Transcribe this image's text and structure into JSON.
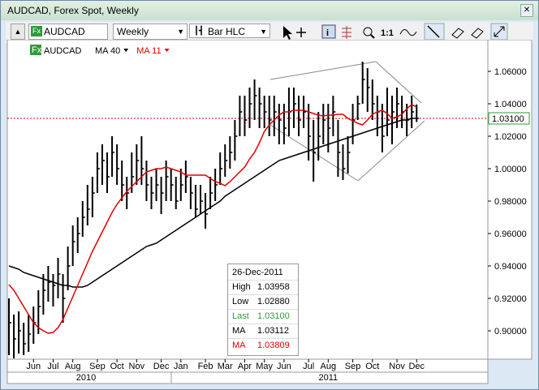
{
  "window": {
    "title": "AUDCAD, Forex Spot, Weekly"
  },
  "toolbar": {
    "symbol": "AUDCAD",
    "period": "Weekly",
    "chart_style": "Bar HLC",
    "zoom_label": "1:1",
    "fx_icon": "Fx"
  },
  "legend": {
    "symbol": "AUDCAD"
  },
  "info_box": {
    "date": "26-Dec-2011",
    "rows": [
      [
        "High",
        "1.03958"
      ],
      [
        "Low",
        "1.02880"
      ],
      [
        "Last",
        "1.03100"
      ],
      [
        "MA",
        "1.03112"
      ],
      [
        "MA",
        "1.03809"
      ]
    ]
  },
  "chart_data": {
    "type": "ohlc",
    "high": [
      0.92,
      0.91,
      0.912,
      0.905,
      0.91,
      0.915,
      0.925,
      0.935,
      0.94,
      0.935,
      0.945,
      0.935,
      0.952,
      0.965,
      0.97,
      0.98,
      0.99,
      0.995,
      1.01,
      1.015,
      1.01,
      1.02,
      1.015,
      1.005,
      0.995,
      1.01,
      1.015,
      1.02,
      1.005,
      0.995,
      1.0,
      0.995,
      1.005,
      1.0,
      0.995,
      1.0,
      1.005,
      0.995,
      0.99,
      0.99,
      0.985,
      0.995,
      1.0,
      1.01,
      1.015,
      1.02,
      1.03,
      1.045,
      1.045,
      1.05,
      1.055,
      1.05,
      1.045,
      1.045,
      1.045,
      1.04,
      1.04,
      1.05,
      1.05,
      1.045,
      1.045,
      1.04,
      1.03,
      1.035,
      1.04,
      1.04,
      1.045,
      1.03,
      1.015,
      1.02,
      1.04,
      1.045,
      1.066,
      1.062,
      1.055,
      1.045,
      1.04,
      1.05,
      1.045,
      1.05,
      1.045,
      1.04,
      1.045,
      1.03958
    ],
    "low": [
      0.885,
      0.883,
      0.886,
      0.885,
      0.887,
      0.892,
      0.898,
      0.91,
      0.918,
      0.915,
      0.92,
      0.905,
      0.925,
      0.94,
      0.948,
      0.958,
      0.965,
      0.97,
      0.985,
      0.99,
      0.985,
      0.995,
      0.99,
      0.98,
      0.975,
      0.985,
      0.99,
      0.99,
      0.98,
      0.975,
      0.98,
      0.972,
      0.98,
      0.98,
      0.975,
      0.98,
      0.985,
      0.975,
      0.97,
      0.972,
      0.963,
      0.975,
      0.98,
      0.99,
      0.995,
      1.0,
      1.005,
      1.02,
      1.02,
      1.025,
      1.03,
      1.025,
      1.025,
      1.02,
      1.02,
      1.015,
      1.015,
      1.02,
      1.025,
      1.02,
      1.025,
      1.005,
      0.992,
      1.005,
      1.015,
      1.01,
      1.02,
      0.995,
      0.993,
      0.997,
      1.015,
      1.03,
      1.04,
      1.035,
      1.03,
      1.02,
      1.01,
      1.02,
      1.015,
      1.025,
      1.025,
      1.02,
      1.025,
      1.0288
    ],
    "close": [
      0.905,
      0.895,
      0.9,
      0.892,
      0.898,
      0.905,
      0.915,
      0.925,
      0.93,
      0.928,
      0.935,
      0.92,
      0.94,
      0.955,
      0.96,
      0.97,
      0.975,
      0.985,
      1.0,
      1.005,
      0.995,
      1.01,
      1.0,
      0.99,
      0.985,
      0.995,
      1.005,
      1.0,
      0.99,
      0.985,
      0.99,
      0.985,
      0.995,
      0.99,
      0.98,
      0.99,
      0.995,
      0.985,
      0.975,
      0.98,
      0.972,
      0.985,
      0.99,
      1.0,
      1.005,
      1.01,
      1.02,
      1.035,
      1.03,
      1.04,
      1.045,
      1.04,
      1.035,
      1.03,
      1.035,
      1.03,
      1.025,
      1.035,
      1.04,
      1.03,
      1.035,
      1.02,
      1.01,
      1.02,
      1.03,
      1.025,
      1.035,
      1.01,
      1.0,
      1.01,
      1.03,
      1.04,
      1.055,
      1.05,
      1.04,
      1.035,
      1.02,
      1.03,
      1.035,
      1.04,
      1.035,
      1.03,
      1.035,
      1.031
    ],
    "series": [
      {
        "name": "MA 40",
        "color": "#000000",
        "values": [
          0.94,
          0.939,
          0.938,
          0.936,
          0.935,
          0.934,
          0.933,
          0.932,
          0.931,
          0.93,
          0.929,
          0.928,
          0.928,
          0.927,
          0.927,
          0.927,
          0.928,
          0.93,
          0.932,
          0.934,
          0.936,
          0.938,
          0.94,
          0.942,
          0.944,
          0.946,
          0.948,
          0.95,
          0.952,
          0.953,
          0.954,
          0.956,
          0.958,
          0.96,
          0.962,
          0.964,
          0.966,
          0.968,
          0.97,
          0.972,
          0.974,
          0.976,
          0.978,
          0.98,
          0.983,
          0.985,
          0.987,
          0.989,
          0.991,
          0.993,
          0.995,
          0.997,
          0.999,
          1.001,
          1.003,
          1.005,
          1.006,
          1.007,
          1.008,
          1.009,
          1.01,
          1.011,
          1.012,
          1.013,
          1.014,
          1.015,
          1.016,
          1.017,
          1.018,
          1.019,
          1.02,
          1.021,
          1.022,
          1.023,
          1.024,
          1.025,
          1.026,
          1.027,
          1.028,
          1.029,
          1.03,
          1.03,
          1.031,
          1.03112
        ]
      },
      {
        "name": "MA 11",
        "color": "#e00000",
        "values": [
          0.9285,
          0.925,
          0.92,
          0.915,
          0.91,
          0.905,
          0.902,
          0.9,
          0.8985,
          0.899,
          0.902,
          0.907,
          0.914,
          0.921,
          0.928,
          0.935,
          0.942,
          0.949,
          0.955,
          0.961,
          0.967,
          0.973,
          0.978,
          0.982,
          0.986,
          0.989,
          0.992,
          0.995,
          0.998,
          0.999,
          1.0,
          1.0,
          1.001,
          1.0,
          0.999,
          0.998,
          0.996,
          0.996,
          0.996,
          0.996,
          0.996,
          0.994,
          0.992,
          0.991,
          0.9895,
          0.992,
          0.995,
          0.998,
          1.001,
          1.006,
          1.01,
          1.016,
          1.023,
          1.027,
          1.03,
          1.033,
          1.035,
          1.035,
          1.036,
          1.036,
          1.036,
          1.035,
          1.034,
          1.033,
          1.0325,
          1.033,
          1.033,
          1.0335,
          1.0335,
          1.031,
          1.0295,
          1.028,
          1.027,
          1.03,
          1.0335,
          1.035,
          1.036,
          1.034,
          1.031,
          1.032,
          1.0335,
          1.037,
          1.0395,
          1.03809
        ]
      }
    ],
    "ylim": [
      0.8825,
      1.0795
    ],
    "yticks": [
      {
        "value": 0.9,
        "label": "0.90000"
      },
      {
        "value": 0.92,
        "label": "0.92000"
      },
      {
        "value": 0.94,
        "label": "0.94000"
      },
      {
        "value": 0.96,
        "label": "0.96000"
      },
      {
        "value": 0.98,
        "label": "0.98000"
      },
      {
        "value": 1.0,
        "label": "1.00000"
      },
      {
        "value": 1.02,
        "label": "1.02000"
      },
      {
        "value": 1.04,
        "label": "1.04000"
      },
      {
        "value": 1.06,
        "label": "1.06000"
      }
    ],
    "xlim": [
      -0.33,
      97.5
    ],
    "xticks": [
      {
        "value": 5,
        "label": "Jun"
      },
      {
        "value": 9,
        "label": "Jul"
      },
      {
        "value": 13,
        "label": "Aug"
      },
      {
        "value": 18,
        "label": "Sep"
      },
      {
        "value": 22,
        "label": "Oct"
      },
      {
        "value": 26,
        "label": "Nov"
      },
      {
        "value": 31,
        "label": "Dec"
      },
      {
        "value": 35,
        "label": "Jan"
      },
      {
        "value": 40,
        "label": "Feb"
      },
      {
        "value": 44,
        "label": "Mar"
      },
      {
        "value": 48,
        "label": "Apr"
      },
      {
        "value": 52,
        "label": "May"
      },
      {
        "value": 56,
        "label": "Jun"
      },
      {
        "value": 61,
        "label": "Jul"
      },
      {
        "value": 65,
        "label": "Aug"
      },
      {
        "value": 70,
        "label": "Sep"
      },
      {
        "value": 74,
        "label": "Oct"
      },
      {
        "value": 79,
        "label": "Nov"
      },
      {
        "value": 83,
        "label": "Dec"
      }
    ],
    "years": [
      {
        "value": 15.7,
        "label": "2010"
      },
      {
        "value": 65,
        "label": "2011"
      }
    ],
    "last_label": "1.03100"
  }
}
